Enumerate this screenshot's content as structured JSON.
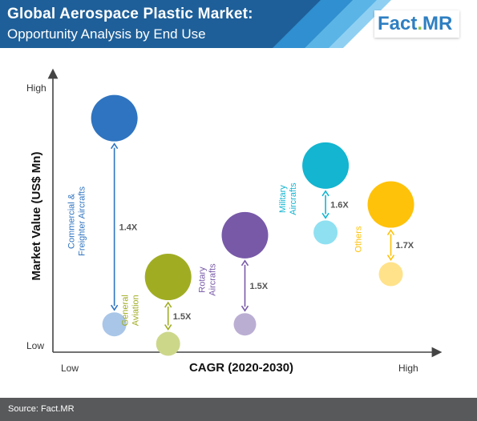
{
  "header": {
    "title": "Global Aerospace Plastic Market:",
    "subtitle": "Opportunity Analysis  by End Use",
    "logo_text": "Fact.MR",
    "logo_main": "Fact",
    "logo_dot": ".",
    "logo_end": "MR"
  },
  "footer": {
    "source": "Source: Fact.MR"
  },
  "colors": {
    "banner_dark": "#1e5f99",
    "banner_mid": "#2f8fd0",
    "banner_light": "#5ab4e6",
    "logo_blue": "#2e7fc2",
    "logo_green": "#8bc34a",
    "axis": "#444444",
    "footer": "#58595b"
  },
  "chart_data": {
    "type": "bubble",
    "xlabel": "CAGR (2020-2030)",
    "ylabel": "Market Value (US$ Mn)",
    "x_ticks": {
      "low": "Low",
      "high": "High"
    },
    "y_ticks": {
      "low": "Low",
      "high": "High"
    },
    "series": [
      {
        "name": "Commercial & Freighter Aircrafts",
        "label_lines": [
          "Commercial &",
          "Freighter Aircrafts"
        ],
        "multiplier": "1.4X",
        "color": "#2f74c0",
        "light_color": "#a9c6e8",
        "x": 0.16,
        "y_start": 0.1,
        "y_end": 0.84,
        "r_start": 15,
        "r_end": 29
      },
      {
        "name": "General Aviation",
        "label_lines": [
          "General",
          "Aviation"
        ],
        "multiplier": "1.5X",
        "color": "#a0ad23",
        "light_color": "#cdd78a",
        "x": 0.3,
        "y_start": 0.03,
        "y_end": 0.27,
        "r_start": 15,
        "r_end": 29
      },
      {
        "name": "Rotary Aircrafts",
        "label_lines": [
          "Rotary",
          "Aircrafts"
        ],
        "multiplier": "1.5X",
        "color": "#7759a8",
        "light_color": "#bbaed3",
        "x": 0.5,
        "y_start": 0.1,
        "y_end": 0.42,
        "r_start": 14,
        "r_end": 29
      },
      {
        "name": "Military Aircrafts",
        "label_lines": [
          "Military",
          "Aircrafts"
        ],
        "multiplier": "1.6X",
        "color": "#13b5d0",
        "light_color": "#8fe0f1",
        "x": 0.71,
        "y_start": 0.43,
        "y_end": 0.67,
        "r_start": 15,
        "r_end": 29
      },
      {
        "name": "Others",
        "label_lines": [
          "Others"
        ],
        "multiplier": "1.7X",
        "color": "#ffc20a",
        "light_color": "#ffe28a",
        "x": 0.88,
        "y_start": 0.28,
        "y_end": 0.53,
        "r_start": 15,
        "r_end": 29
      }
    ]
  }
}
